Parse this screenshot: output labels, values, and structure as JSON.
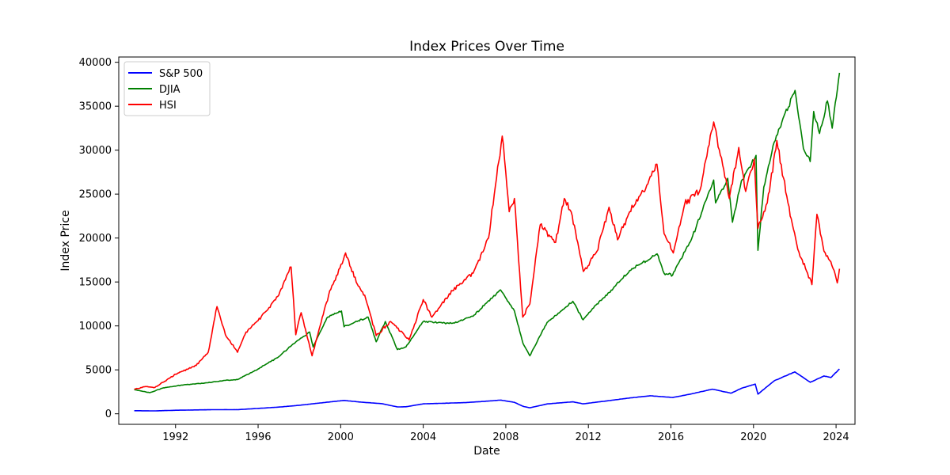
{
  "chart_data": {
    "type": "line",
    "title": "Index Prices Over Time",
    "xlabel": "Date",
    "ylabel": "Index Price",
    "xlim": [
      "1989-04-01",
      "2024-12-01"
    ],
    "ylim": [
      -1200,
      40600
    ],
    "x_ticks": [
      "1992",
      "1996",
      "2000",
      "2004",
      "2008",
      "2012",
      "2016",
      "2020",
      "2024"
    ],
    "y_ticks": [
      0,
      5000,
      10000,
      15000,
      20000,
      25000,
      30000,
      35000,
      40000
    ],
    "grid": false,
    "legend_position": "top-left",
    "series": [
      {
        "name": "S&P 500",
        "color": "#0000ff",
        "points": [
          [
            "1990-01-01",
            353
          ],
          [
            "1991-01-01",
            330
          ],
          [
            "1992-01-01",
            400
          ],
          [
            "1993-01-01",
            440
          ],
          [
            "1994-01-01",
            470
          ],
          [
            "1995-01-01",
            470
          ],
          [
            "1996-01-01",
            610
          ],
          [
            "1997-01-01",
            760
          ],
          [
            "1998-01-01",
            970
          ],
          [
            "1999-01-01",
            1230
          ],
          [
            "2000-03-01",
            1520
          ],
          [
            "2001-01-01",
            1320
          ],
          [
            "2002-01-01",
            1150
          ],
          [
            "2002-10-01",
            780
          ],
          [
            "2003-03-01",
            800
          ],
          [
            "2004-01-01",
            1130
          ],
          [
            "2005-01-01",
            1200
          ],
          [
            "2006-01-01",
            1270
          ],
          [
            "2007-01-01",
            1420
          ],
          [
            "2007-10-01",
            1560
          ],
          [
            "2008-06-01",
            1300
          ],
          [
            "2008-11-01",
            850
          ],
          [
            "2009-03-01",
            680
          ],
          [
            "2010-01-01",
            1120
          ],
          [
            "2011-04-01",
            1360
          ],
          [
            "2011-10-01",
            1130
          ],
          [
            "2012-06-01",
            1330
          ],
          [
            "2013-01-01",
            1500
          ],
          [
            "2014-01-01",
            1800
          ],
          [
            "2015-01-01",
            2050
          ],
          [
            "2016-02-01",
            1850
          ],
          [
            "2017-01-01",
            2270
          ],
          [
            "2018-01-01",
            2800
          ],
          [
            "2018-12-01",
            2350
          ],
          [
            "2019-06-01",
            2900
          ],
          [
            "2020-02-01",
            3380
          ],
          [
            "2020-03-20",
            2240
          ],
          [
            "2021-01-01",
            3750
          ],
          [
            "2022-01-01",
            4770
          ],
          [
            "2022-10-01",
            3580
          ],
          [
            "2023-06-01",
            4300
          ],
          [
            "2023-10-01",
            4120
          ],
          [
            "2024-03-01",
            5100
          ]
        ]
      },
      {
        "name": "DJIA",
        "color": "#008000",
        "points": [
          [
            "1990-01-01",
            2750
          ],
          [
            "1990-10-01",
            2400
          ],
          [
            "1991-06-01",
            2950
          ],
          [
            "1992-06-01",
            3300
          ],
          [
            "1993-06-01",
            3500
          ],
          [
            "1994-06-01",
            3800
          ],
          [
            "1995-01-01",
            3900
          ],
          [
            "1996-01-01",
            5100
          ],
          [
            "1997-01-01",
            6500
          ],
          [
            "1997-09-01",
            7900
          ],
          [
            "1998-07-01",
            9300
          ],
          [
            "1998-09-01",
            7600
          ],
          [
            "1999-05-01",
            10900
          ],
          [
            "2000-01-15",
            11700
          ],
          [
            "2000-03-01",
            9900
          ],
          [
            "2001-05-01",
            11000
          ],
          [
            "2001-09-20",
            8200
          ],
          [
            "2002-03-01",
            10500
          ],
          [
            "2002-10-01",
            7300
          ],
          [
            "2003-03-01",
            7600
          ],
          [
            "2004-01-01",
            10500
          ],
          [
            "2005-06-01",
            10300
          ],
          [
            "2006-06-01",
            11100
          ],
          [
            "2007-01-01",
            12500
          ],
          [
            "2007-10-01",
            14100
          ],
          [
            "2008-06-01",
            11700
          ],
          [
            "2008-11-01",
            8000
          ],
          [
            "2009-03-01",
            6600
          ],
          [
            "2010-01-01",
            10400
          ],
          [
            "2011-04-01",
            12800
          ],
          [
            "2011-10-01",
            10700
          ],
          [
            "2012-06-01",
            12500
          ],
          [
            "2013-01-01",
            13800
          ],
          [
            "2014-01-01",
            16300
          ],
          [
            "2015-05-01",
            18200
          ],
          [
            "2015-09-01",
            16000
          ],
          [
            "2016-02-01",
            15800
          ],
          [
            "2017-01-01",
            19900
          ],
          [
            "2018-01-26",
            26600
          ],
          [
            "2018-03-01",
            24000
          ],
          [
            "2018-10-01",
            26800
          ],
          [
            "2018-12-24",
            21800
          ],
          [
            "2019-06-01",
            26500
          ],
          [
            "2020-02-15",
            29400
          ],
          [
            "2020-03-20",
            18600
          ],
          [
            "2020-07-01",
            25800
          ],
          [
            "2021-01-01",
            30900
          ],
          [
            "2022-01-05",
            36800
          ],
          [
            "2022-06-01",
            30200
          ],
          [
            "2022-09-30",
            28700
          ],
          [
            "2022-12-01",
            34400
          ],
          [
            "2023-03-15",
            31900
          ],
          [
            "2023-08-01",
            35600
          ],
          [
            "2023-10-25",
            32500
          ],
          [
            "2024-03-01",
            38800
          ]
        ]
      },
      {
        "name": "HSI",
        "color": "#ff0000",
        "points": [
          [
            "1990-01-01",
            2800
          ],
          [
            "1990-08-01",
            3100
          ],
          [
            "1991-01-01",
            3000
          ],
          [
            "1992-01-01",
            4500
          ],
          [
            "1993-01-01",
            5500
          ],
          [
            "1993-08-01",
            7000
          ],
          [
            "1994-01-04",
            12200
          ],
          [
            "1994-06-01",
            9000
          ],
          [
            "1995-01-01",
            7000
          ],
          [
            "1995-06-01",
            9300
          ],
          [
            "1996-01-01",
            10600
          ],
          [
            "1997-01-01",
            13500
          ],
          [
            "1997-08-07",
            16700
          ],
          [
            "1997-10-28",
            9000
          ],
          [
            "1998-02-01",
            11500
          ],
          [
            "1998-08-13",
            6600
          ],
          [
            "1999-01-01",
            10000
          ],
          [
            "1999-06-01",
            13500
          ],
          [
            "2000-03-28",
            18300
          ],
          [
            "2000-10-01",
            15000
          ],
          [
            "2001-03-01",
            13500
          ],
          [
            "2001-09-21",
            8900
          ],
          [
            "2002-06-01",
            10500
          ],
          [
            "2003-04-25",
            8400
          ],
          [
            "2004-01-01",
            13000
          ],
          [
            "2004-06-01",
            11000
          ],
          [
            "2005-06-01",
            14000
          ],
          [
            "2006-06-01",
            16000
          ],
          [
            "2007-03-01",
            20000
          ],
          [
            "2007-10-30",
            31600
          ],
          [
            "2008-03-01",
            23000
          ],
          [
            "2008-06-01",
            24500
          ],
          [
            "2008-10-27",
            11000
          ],
          [
            "2009-03-01",
            12500
          ],
          [
            "2009-09-01",
            21500
          ],
          [
            "2010-06-01",
            19500
          ],
          [
            "2010-11-01",
            24500
          ],
          [
            "2011-03-01",
            23000
          ],
          [
            "2011-10-04",
            16200
          ],
          [
            "2012-06-01",
            18500
          ],
          [
            "2013-01-01",
            23500
          ],
          [
            "2013-06-01",
            19800
          ],
          [
            "2014-01-01",
            23000
          ],
          [
            "2014-09-01",
            25300
          ],
          [
            "2015-04-28",
            28400
          ],
          [
            "2015-09-01",
            20500
          ],
          [
            "2016-02-12",
            18300
          ],
          [
            "2016-09-01",
            23900
          ],
          [
            "2017-06-01",
            25500
          ],
          [
            "2018-01-26",
            33200
          ],
          [
            "2018-10-30",
            24500
          ],
          [
            "2019-04-15",
            30300
          ],
          [
            "2019-08-15",
            25300
          ],
          [
            "2020-01-15",
            29000
          ],
          [
            "2020-03-19",
            21100
          ],
          [
            "2020-09-01",
            24000
          ],
          [
            "2021-02-18",
            31100
          ],
          [
            "2021-09-01",
            24000
          ],
          [
            "2022-03-15",
            18400
          ],
          [
            "2022-10-31",
            14700
          ],
          [
            "2023-01-27",
            22700
          ],
          [
            "2023-06-01",
            18500
          ],
          [
            "2023-10-01",
            17300
          ],
          [
            "2024-01-22",
            14900
          ],
          [
            "2024-03-01",
            16500
          ]
        ]
      }
    ]
  }
}
